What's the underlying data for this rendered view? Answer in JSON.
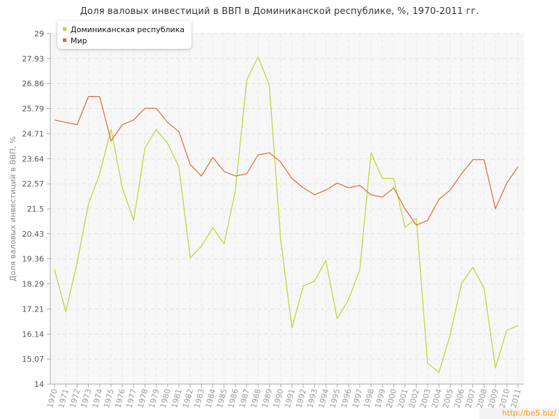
{
  "chart_data": {
    "type": "line",
    "title": "Доля валовых инвестиций в ВВП в Доминиканской республике, %, 1970-2011 гг.",
    "ylabel": "Доля валовых инвестиций в ВВП, %",
    "xlabel": "",
    "ylim": [
      14,
      29
    ],
    "yticks": [
      "14",
      "15.07",
      "16.14",
      "17.21",
      "18.29",
      "19.36",
      "20.43",
      "21.5",
      "22.57",
      "23.64",
      "24.71",
      "25.79",
      "26.86",
      "27.93",
      "29"
    ],
    "x": [
      "1970",
      "1971",
      "1972",
      "1973",
      "1974",
      "1975",
      "1976",
      "1977",
      "1978",
      "1979",
      "1980",
      "1981",
      "1982",
      "1983",
      "1984",
      "1985",
      "1986",
      "1987",
      "1988",
      "1989",
      "1990",
      "1991",
      "1992",
      "1993",
      "1994",
      "1995",
      "1996",
      "1997",
      "1998",
      "1999",
      "2000",
      "2001",
      "2002",
      "2003",
      "2004",
      "2005",
      "2006",
      "2007",
      "2008",
      "2009",
      "2010",
      "2011"
    ],
    "grid": true,
    "legend_position": "top-left",
    "series": [
      {
        "name": "Доминиканская республика",
        "color": "#b5d82a",
        "values": [
          18.9,
          17.1,
          19.2,
          21.7,
          23.0,
          24.9,
          22.4,
          21.0,
          24.1,
          24.9,
          24.3,
          23.3,
          19.4,
          19.9,
          20.7,
          20.0,
          22.3,
          27.0,
          28.0,
          26.8,
          20.2,
          16.4,
          18.2,
          18.4,
          19.3,
          16.8,
          17.6,
          18.9,
          23.9,
          22.8,
          22.8,
          20.7,
          21.1,
          14.9,
          14.5,
          16.1,
          18.3,
          19.0,
          18.1,
          14.7,
          16.3,
          16.5
        ]
      },
      {
        "name": "Мир",
        "color": "#dd6633",
        "values": [
          25.3,
          25.2,
          25.1,
          26.3,
          26.3,
          24.4,
          25.1,
          25.3,
          25.8,
          25.8,
          25.2,
          24.8,
          23.4,
          22.9,
          23.7,
          23.1,
          22.9,
          23.0,
          23.8,
          23.9,
          23.5,
          22.8,
          22.4,
          22.1,
          22.3,
          22.6,
          22.4,
          22.5,
          22.1,
          22.0,
          22.4,
          21.5,
          20.8,
          21.0,
          21.9,
          22.3,
          23.0,
          23.6,
          23.6,
          21.5,
          22.6,
          23.3
        ]
      }
    ]
  },
  "watermark": "http://be5.biz/"
}
